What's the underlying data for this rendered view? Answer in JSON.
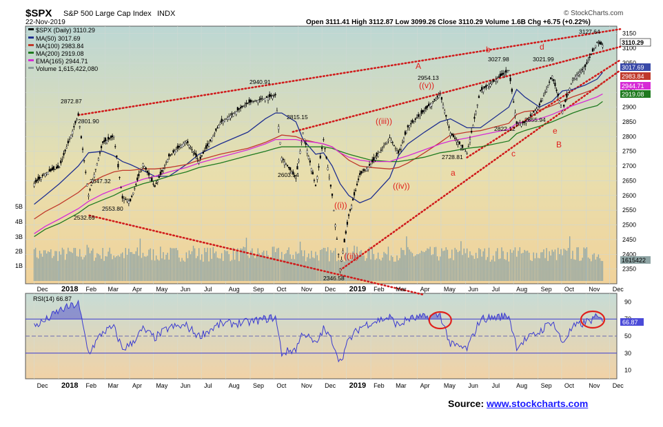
{
  "header": {
    "symbol": "$SPX",
    "name": "S&P 500 Large Cap Index",
    "exchange": "INDX",
    "date": "22-Nov-2019",
    "quote": "Open 3111.41  High 3112.87  Low 3099.26  Close 3110.29  Volume 1.6B  Chg +6.75 (+0.22%)",
    "credit": "© StockCharts.com"
  },
  "legend": [
    {
      "text": "$SPX (Daily) 3110.29",
      "color": "#000000"
    },
    {
      "text": "MA(50) 3017.69",
      "color": "#1f2f8f"
    },
    {
      "text": "MA(100) 2983.84",
      "color": "#c0392b"
    },
    {
      "text": "MA(200) 2919.08",
      "color": "#1f7a1f"
    },
    {
      "text": "EMA(165) 2944.71",
      "color": "#d62bd6"
    },
    {
      "text": "Volume 1,615,422,080",
      "color": "#8a9a9a"
    }
  ],
  "rsi_legend": "RSI(14) 66.87",
  "source": {
    "prefix": "Source: ",
    "link": "www.stockcharts.com"
  },
  "colors": {
    "accent_red": "#e0201c",
    "price": "#000000",
    "ma50": "#1f2f8f",
    "ma100": "#c0392b",
    "ma200": "#1f7a1f",
    "ema165": "#d62bd6",
    "volume": "#8fa5a5",
    "rsi": "#3a3ad0"
  },
  "chart_data": [
    {
      "type": "line",
      "title": "$SPX S&P 500 Large Cap Index INDX",
      "x": [
        "2017-12-01",
        "2017-12-15",
        "2018-01-02",
        "2018-01-26",
        "2018-02-08",
        "2018-02-26",
        "2018-03-12",
        "2018-03-23",
        "2018-04-02",
        "2018-04-18",
        "2018-05-03",
        "2018-05-21",
        "2018-06-12",
        "2018-06-28",
        "2018-07-25",
        "2018-08-29",
        "2018-09-20",
        "2018-10-03",
        "2018-10-11",
        "2018-10-29",
        "2018-11-07",
        "2018-11-23",
        "2018-12-03",
        "2018-12-14",
        "2018-12-24",
        "2019-01-04",
        "2019-01-18",
        "2019-02-01",
        "2019-02-25",
        "2019-03-08",
        "2019-03-20",
        "2019-04-10",
        "2019-04-30",
        "2019-05-13",
        "2019-06-03",
        "2019-06-20",
        "2019-07-26",
        "2019-08-05",
        "2019-08-15",
        "2019-09-03",
        "2019-09-19",
        "2019-10-02",
        "2019-10-15",
        "2019-10-31",
        "2019-11-15",
        "2019-11-22"
      ],
      "series": [
        {
          "name": "$SPX (Daily) 3110.29",
          "values": [
            2640,
            2675,
            2696,
            2872.87,
            2600,
            2779,
            2801.9,
            2590,
            2581,
            2708,
            2629,
            2733,
            2786,
            2716,
            2846,
            2914,
            2930.75,
            2940.91,
            2728,
            2658,
            2813,
            2632,
            2790,
            2599,
            2351,
            2531,
            2670,
            2706,
            2796,
            2743,
            2832,
            2888,
            2945,
            2811,
            2744,
            2955,
            3025,
            2844,
            2847,
            2906,
            3006,
            2887,
            2995,
            3037,
            3120,
            3110.29
          ]
        },
        {
          "name": "MA(50) 3017.69",
          "values": [
            2570,
            2600,
            2640,
            2700,
            2745,
            2750,
            2735,
            2715,
            2705,
            2685,
            2665,
            2665,
            2705,
            2740,
            2775,
            2815,
            2860,
            2880,
            2880,
            2850,
            2790,
            2740,
            2745,
            2700,
            2640,
            2600,
            2575,
            2590,
            2660,
            2735,
            2775,
            2815,
            2850,
            2860,
            2830,
            2830,
            2900,
            2960,
            2935,
            2900,
            2920,
            2955,
            2960,
            2975,
            2995,
            3017.69
          ]
        },
        {
          "name": "MA(100) 2983.84",
          "values": [
            2520,
            2545,
            2570,
            2610,
            2640,
            2665,
            2680,
            2685,
            2685,
            2690,
            2690,
            2695,
            2705,
            2720,
            2740,
            2760,
            2780,
            2795,
            2805,
            2800,
            2790,
            2780,
            2775,
            2765,
            2745,
            2720,
            2700,
            2695,
            2690,
            2695,
            2710,
            2745,
            2780,
            2805,
            2815,
            2820,
            2845,
            2875,
            2885,
            2890,
            2905,
            2920,
            2935,
            2950,
            2965,
            2983.84
          ]
        },
        {
          "name": "MA(200) 2919.08",
          "values": [
            2460,
            2485,
            2505,
            2540,
            2565,
            2585,
            2600,
            2615,
            2625,
            2640,
            2650,
            2665,
            2680,
            2695,
            2710,
            2735,
            2750,
            2760,
            2765,
            2765,
            2765,
            2765,
            2765,
            2760,
            2750,
            2740,
            2730,
            2720,
            2715,
            2715,
            2720,
            2730,
            2745,
            2750,
            2760,
            2765,
            2785,
            2810,
            2820,
            2835,
            2850,
            2865,
            2880,
            2895,
            2905,
            2919.08
          ]
        },
        {
          "name": "EMA(165) 2944.71",
          "values": [
            2470,
            2495,
            2520,
            2555,
            2580,
            2605,
            2620,
            2630,
            2640,
            2655,
            2665,
            2680,
            2695,
            2710,
            2730,
            2755,
            2775,
            2790,
            2790,
            2790,
            2785,
            2780,
            2775,
            2765,
            2745,
            2730,
            2720,
            2715,
            2715,
            2725,
            2735,
            2755,
            2775,
            2785,
            2795,
            2805,
            2825,
            2845,
            2850,
            2860,
            2875,
            2890,
            2905,
            2920,
            2935,
            2944.71
          ]
        }
      ],
      "ylim": [
        2300,
        3175
      ],
      "yticks": [
        2350,
        2400,
        2450,
        2500,
        2550,
        2600,
        2650,
        2700,
        2750,
        2800,
        2850,
        2900,
        2950,
        3000,
        3050,
        3100,
        3150
      ],
      "right_labels": [
        "3110.29",
        "3017.69",
        "2983.84",
        "2944.71",
        "2919.08",
        "1615422"
      ],
      "volume_ticks": [
        "5B",
        "4B",
        "3B",
        "2B",
        "1B"
      ],
      "volume_label": "Volume 1,615,422,080",
      "price_labels": [
        "2872.87",
        "2801.90",
        "2647.32",
        "2553.80",
        "2532.69",
        "2940.91",
        "2815.15",
        "2603.54",
        "2346.58",
        "2954.13",
        "2728.81",
        "3027.98",
        "3021.99",
        "2822.12",
        "2855.94",
        "3127.64"
      ],
      "wave_labels": [
        "A",
        "b",
        "d",
        "((v))",
        "((iii))",
        "a",
        "c",
        "e",
        "B",
        "((iv))",
        "((i))",
        "((ii))"
      ]
    },
    {
      "type": "line",
      "title": "RSI(14) 66.87",
      "ylim": [
        0,
        100
      ],
      "yticks": [
        10,
        30,
        50,
        70,
        90
      ],
      "reference_lines": [
        30,
        50,
        70
      ],
      "series": [
        {
          "name": "RSI(14) 66.87",
          "values": [
            62,
            68,
            80,
            88,
            30,
            55,
            60,
            35,
            40,
            58,
            48,
            60,
            62,
            50,
            64,
            66,
            70,
            72,
            30,
            35,
            55,
            40,
            58,
            45,
            20,
            45,
            60,
            66,
            72,
            62,
            70,
            72,
            75,
            40,
            35,
            70,
            74,
            38,
            45,
            55,
            68,
            42,
            60,
            66,
            72,
            66.87
          ]
        }
      ],
      "right_labels": [
        "66.87"
      ]
    }
  ],
  "x_axis_labels": [
    "Dec",
    "2018",
    "Feb",
    "Mar",
    "Apr",
    "May",
    "Jun",
    "Jul",
    "Aug",
    "Sep",
    "Oct",
    "Nov",
    "Dec",
    "2019",
    "Feb",
    "Mar",
    "Apr",
    "May",
    "Jun",
    "Jul",
    "Aug",
    "Sep",
    "Oct",
    "Nov",
    "Dec"
  ]
}
